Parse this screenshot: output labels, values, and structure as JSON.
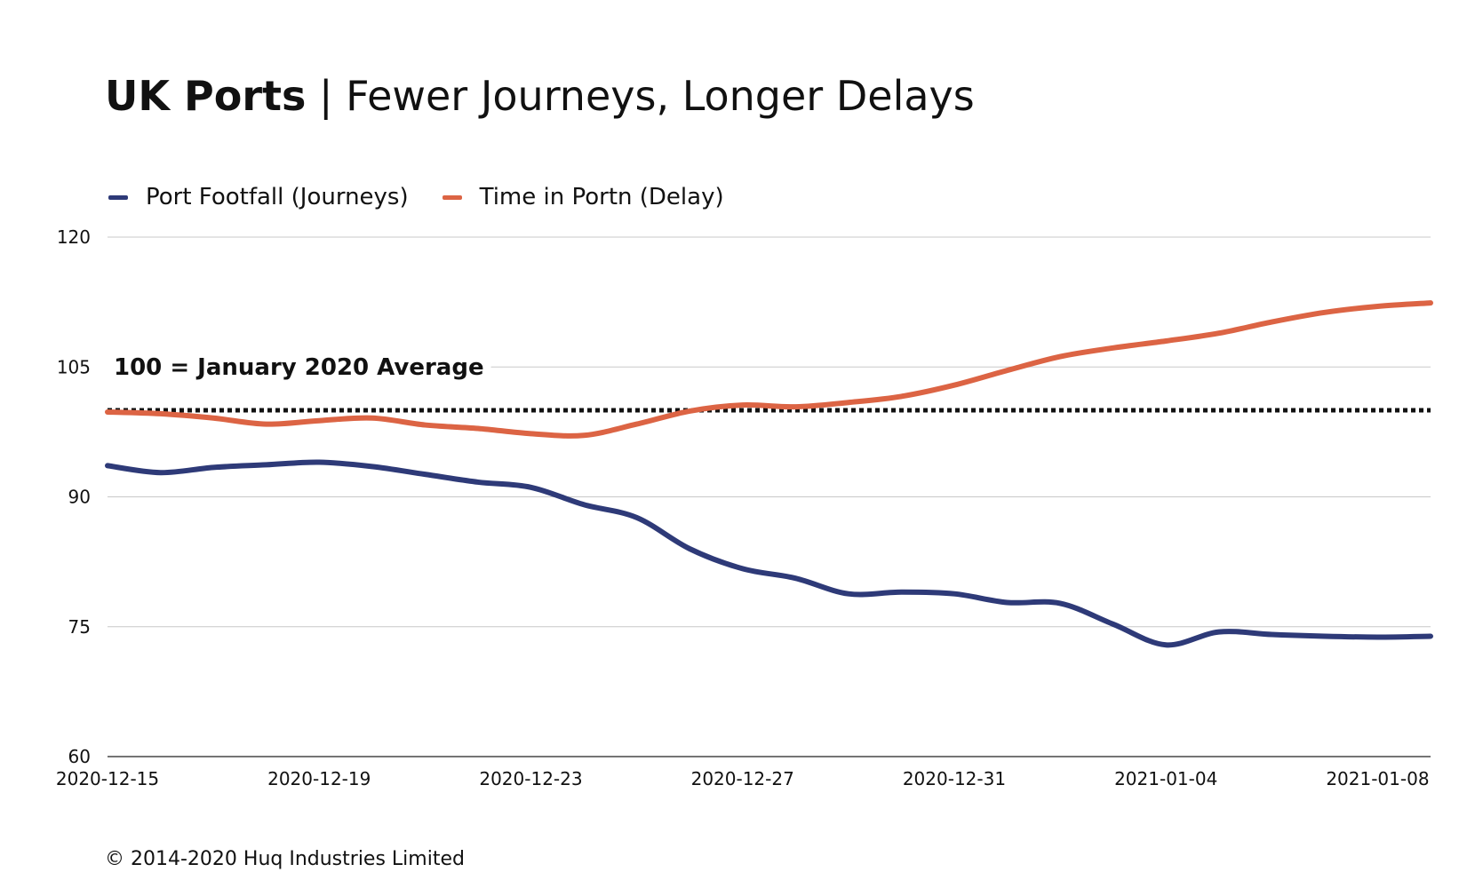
{
  "title": {
    "bold": "UK Ports",
    "rest": " | Fewer Journeys, Longer Delays"
  },
  "footer": "© 2014-2020 Huq Industries Limited",
  "colors": {
    "footfall": "#2e3a78",
    "delay": "#dc6444",
    "grid": "#c8c8c8",
    "axis": "#222222",
    "reference": "#111111"
  },
  "chart_data": {
    "type": "line",
    "title": "UK Ports | Fewer Journeys, Longer Delays",
    "xlabel": "",
    "ylabel": "",
    "ylim": [
      60,
      120
    ],
    "yticks": [
      "60",
      "75",
      "90",
      "105",
      "120"
    ],
    "xlim": [
      "2020-12-15",
      "2021-01-09"
    ],
    "xticks": [
      "2020-12-15",
      "2020-12-19",
      "2020-12-23",
      "2020-12-27",
      "2020-12-31",
      "2021-01-04",
      "2021-01-08"
    ],
    "grid": true,
    "legend_position": "top-left",
    "reference_line": {
      "value": 100,
      "label": "100 = January 2020 Average",
      "style": "dotted"
    },
    "x": [
      "2020-12-15",
      "2020-12-16",
      "2020-12-17",
      "2020-12-18",
      "2020-12-19",
      "2020-12-20",
      "2020-12-21",
      "2020-12-22",
      "2020-12-23",
      "2020-12-24",
      "2020-12-25",
      "2020-12-26",
      "2020-12-27",
      "2020-12-28",
      "2020-12-29",
      "2020-12-30",
      "2020-12-31",
      "2021-01-01",
      "2021-01-02",
      "2021-01-03",
      "2021-01-04",
      "2021-01-05",
      "2021-01-06",
      "2021-01-07",
      "2021-01-08",
      "2021-01-09"
    ],
    "series": [
      {
        "name": "Port Footfall (Journeys)",
        "color": "#2e3a78",
        "values": [
          93.6,
          92.8,
          93.4,
          93.7,
          94.0,
          93.5,
          92.6,
          91.7,
          91.1,
          89.1,
          87.6,
          84.0,
          81.7,
          80.6,
          78.8,
          79.0,
          78.8,
          77.8,
          77.7,
          75.3,
          72.9,
          74.4,
          74.1,
          73.9,
          73.8,
          73.9
        ]
      },
      {
        "name": "Time in Portn (Delay)",
        "color": "#dc6444",
        "values": [
          99.8,
          99.6,
          99.1,
          98.4,
          98.8,
          99.1,
          98.3,
          97.9,
          97.3,
          97.1,
          98.4,
          99.9,
          100.6,
          100.4,
          100.9,
          101.6,
          102.9,
          104.6,
          106.2,
          107.2,
          108.0,
          108.9,
          110.2,
          111.3,
          112.0,
          112.4
        ]
      }
    ]
  }
}
